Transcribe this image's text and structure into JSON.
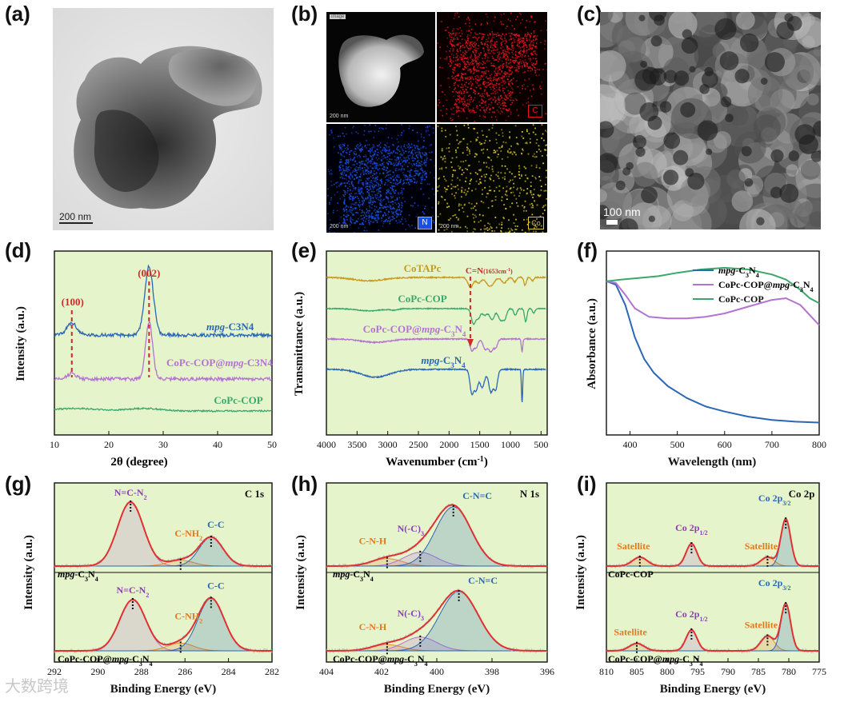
{
  "panels": {
    "a": "(a)",
    "b": "(b)",
    "c": "(c)",
    "d": "(d)",
    "e": "(e)",
    "f": "(f)",
    "g": "(g)",
    "h": "(h)",
    "i": "(i)"
  },
  "images": {
    "a": {
      "scale": "200 nm"
    },
    "b": {
      "top_tag": "image",
      "scales": [
        "200 nm",
        "200 nm",
        "200 nm",
        "200 nm"
      ],
      "badges": [
        "C",
        "N",
        "Co"
      ],
      "colors": {
        "C": "#e8161c",
        "N": "#1a4fe0",
        "Co": "#d8c832"
      }
    },
    "c": {
      "scale": "100 nm"
    }
  },
  "colors": {
    "blue": "#2a67b5",
    "purple": "#b373d1",
    "green": "#3aa86a",
    "gold": "#c79a20",
    "red": "#e03232",
    "orange": "#e98a2e",
    "dashred": "#cf2a2a",
    "bg": "#e6f4cc"
  },
  "chart_data": [
    {
      "id": "d",
      "type": "line",
      "title": "",
      "xlabel": "2θ (degree)",
      "ylabel": "Intensity (a.u.)",
      "xlim": [
        10,
        50
      ],
      "xticks": [
        10,
        20,
        30,
        40,
        50
      ],
      "annotations": [
        {
          "label": "(100)",
          "x": 13.2
        },
        {
          "label": "(002)",
          "x": 27.4
        }
      ],
      "series": [
        {
          "name": "mpg-C3N4",
          "label_main": "mpg",
          "label_rest": "-C3N4",
          "color": "#2a67b5",
          "peaks": [
            [
              13.2,
              0.16,
              0.9
            ],
            [
              27.4,
              0.9,
              0.8
            ]
          ],
          "base": 0.0
        },
        {
          "name": "CoPc-COP@mpg-C3N4",
          "label_main": "CoPc-COP@",
          "label_italic": "mpg",
          "label_rest": "-C3N4",
          "color": "#b373d1",
          "peaks": [
            [
              13.2,
              0.07,
              0.9
            ],
            [
              27.4,
              0.75,
              0.65
            ]
          ],
          "base": 0.0
        },
        {
          "name": "CoPc-COP",
          "label_main": "CoPc-COP",
          "color": "#3aa86a",
          "peaks": [
            [
              14,
              0.08,
              4
            ],
            [
              26.5,
              0.08,
              3
            ]
          ],
          "base": 0.0
        }
      ]
    },
    {
      "id": "e",
      "type": "line",
      "xlabel": "Wavenumber (cm-1)",
      "ylabel": "Transmittance (a.u.)",
      "xlim": [
        4000,
        400
      ],
      "xticks": [
        4000,
        3500,
        3000,
        2500,
        2000,
        1500,
        1000,
        500
      ],
      "annotations": [
        {
          "label": "C=N",
          "sub": "(1653cm-1)",
          "x": 1653
        }
      ],
      "series": [
        {
          "name": "CoTAPc",
          "color": "#c79a20",
          "label": "CoTAPc"
        },
        {
          "name": "CoPc-COP",
          "color": "#3aa86a",
          "label": "CoPc-COP"
        },
        {
          "name": "CoPc-COP@mpg-C3N4",
          "color": "#b373d1",
          "label": "CoPc-COP@mpg-C3N4"
        },
        {
          "name": "mpg-C3N4",
          "color": "#2a67b5",
          "label": "mpg-C3N4"
        }
      ]
    },
    {
      "id": "f",
      "type": "line",
      "xlabel": "Wavelength (nm)",
      "ylabel": "Absorbance (a.u.)",
      "xlim": [
        350,
        800
      ],
      "xticks": [
        400,
        500,
        600,
        700,
        800
      ],
      "legend": [
        "mpg-C3N4",
        "CoPc-COP@mpg-C3N4",
        "CoPc-COP"
      ],
      "series": [
        {
          "name": "mpg-C3N4",
          "color": "#2a67b5",
          "x": [
            350,
            370,
            390,
            410,
            430,
            450,
            480,
            520,
            560,
            600,
            650,
            700,
            750,
            800
          ],
          "y": [
            0.88,
            0.86,
            0.74,
            0.55,
            0.42,
            0.34,
            0.26,
            0.19,
            0.14,
            0.11,
            0.08,
            0.06,
            0.05,
            0.045
          ]
        },
        {
          "name": "CoPc-COP@mpg-C3N4",
          "color": "#b373d1",
          "x": [
            350,
            370,
            390,
            410,
            440,
            480,
            520,
            560,
            600,
            650,
            700,
            730,
            760,
            800
          ],
          "y": [
            0.88,
            0.87,
            0.8,
            0.72,
            0.67,
            0.66,
            0.66,
            0.67,
            0.69,
            0.73,
            0.77,
            0.78,
            0.74,
            0.62
          ]
        },
        {
          "name": "CoPc-COP",
          "color": "#3aa86a",
          "x": [
            350,
            380,
            420,
            460,
            500,
            550,
            600,
            650,
            700,
            730,
            760,
            780,
            800
          ],
          "y": [
            0.88,
            0.89,
            0.9,
            0.91,
            0.93,
            0.95,
            0.96,
            0.95,
            0.92,
            0.89,
            0.83,
            0.78,
            0.75
          ]
        }
      ]
    },
    {
      "id": "g",
      "type": "line",
      "corner": "C 1s",
      "xlabel": "Binding Energy (eV)",
      "ylabel": "Intensity (a.u.)",
      "xlim": [
        292,
        282
      ],
      "xticks": [
        292,
        290,
        288,
        286,
        284,
        282
      ],
      "stacks": [
        {
          "sample": "mpg-C3N4",
          "components": [
            {
              "label": "N=C-N2",
              "center": 288.5,
              "amp": 1.0,
              "width": 0.6,
              "color": "#b373d1"
            },
            {
              "label": "C-NH2",
              "center": 286.2,
              "amp": 0.09,
              "width": 0.6,
              "color": "#e98a2e"
            },
            {
              "label": "C-C",
              "center": 284.8,
              "amp": 0.45,
              "width": 0.55,
              "color": "#2a67b5"
            }
          ]
        },
        {
          "sample": "CoPc-COP@mpg-C3N4",
          "components": [
            {
              "label": "N=C-N2",
              "center": 288.4,
              "amp": 0.8,
              "width": 0.6,
              "color": "#b373d1"
            },
            {
              "label": "C-NH2",
              "center": 286.2,
              "amp": 0.12,
              "width": 0.6,
              "color": "#e98a2e"
            },
            {
              "label": "C-C",
              "center": 284.8,
              "amp": 0.82,
              "width": 0.6,
              "color": "#2a67b5"
            }
          ]
        }
      ]
    },
    {
      "id": "h",
      "type": "line",
      "corner": "N 1s",
      "xlabel": "Binding Energy (eV)",
      "ylabel": "Intensity (a.u.)",
      "xlim": [
        404,
        396
      ],
      "xticks": [
        404,
        402,
        400,
        398,
        396
      ],
      "stacks": [
        {
          "sample": "mpg-C3N4",
          "components": [
            {
              "label": "C-N-H",
              "center": 401.8,
              "amp": 0.12,
              "width": 0.55,
              "color": "#e98a2e"
            },
            {
              "label": "N(-C)3",
              "center": 400.6,
              "amp": 0.22,
              "width": 0.6,
              "color": "#b373d1"
            },
            {
              "label": "C-N=C",
              "center": 399.4,
              "amp": 0.95,
              "width": 0.65,
              "color": "#2a67b5"
            }
          ]
        },
        {
          "sample": "CoPc-COP@mpg-C3N4",
          "components": [
            {
              "label": "C-N-H",
              "center": 401.8,
              "amp": 0.1,
              "width": 0.55,
              "color": "#e98a2e"
            },
            {
              "label": "N(-C)3",
              "center": 400.6,
              "amp": 0.22,
              "width": 0.6,
              "color": "#b373d1"
            },
            {
              "label": "C-N=C",
              "center": 399.2,
              "amp": 0.95,
              "width": 0.7,
              "color": "#2a67b5"
            }
          ]
        }
      ]
    },
    {
      "id": "i",
      "type": "line",
      "corner": "Co 2p",
      "xlabel": "Binding Energy (eV)",
      "ylabel": "Intensity (a.u.)",
      "xlim": [
        810,
        775
      ],
      "xticks": [
        810,
        805,
        800,
        795,
        790,
        785,
        780,
        775
      ],
      "stacks": [
        {
          "sample": "CoPc-COP",
          "components": [
            {
              "label": "Satellite",
              "center": 804.5,
              "amp": 0.18,
              "width": 1.2,
              "color": "#e98a2e"
            },
            {
              "label": "Co 2p1/2",
              "center": 796,
              "amp": 0.45,
              "width": 0.9,
              "color": "#b373d1"
            },
            {
              "label": "Satellite",
              "center": 783.5,
              "amp": 0.18,
              "width": 1.1,
              "color": "#e98a2e"
            },
            {
              "label": "Co 2p3/2",
              "center": 780.5,
              "amp": 0.95,
              "width": 0.8,
              "color": "#2a67b5"
            }
          ]
        },
        {
          "sample": "CoPc-COP@mpg-C3N4",
          "components": [
            {
              "label": "Satellite",
              "center": 805,
              "amp": 0.15,
              "width": 1.2,
              "color": "#e98a2e"
            },
            {
              "label": "Co 2p1/2",
              "center": 796,
              "amp": 0.42,
              "width": 0.9,
              "color": "#b373d1"
            },
            {
              "label": "Satellite",
              "center": 783.5,
              "amp": 0.3,
              "width": 1.1,
              "color": "#e98a2e"
            },
            {
              "label": "Co 2p3/2",
              "center": 780.5,
              "amp": 0.95,
              "width": 0.8,
              "color": "#2a67b5"
            }
          ]
        }
      ]
    }
  ],
  "watermark": "大数跨境"
}
